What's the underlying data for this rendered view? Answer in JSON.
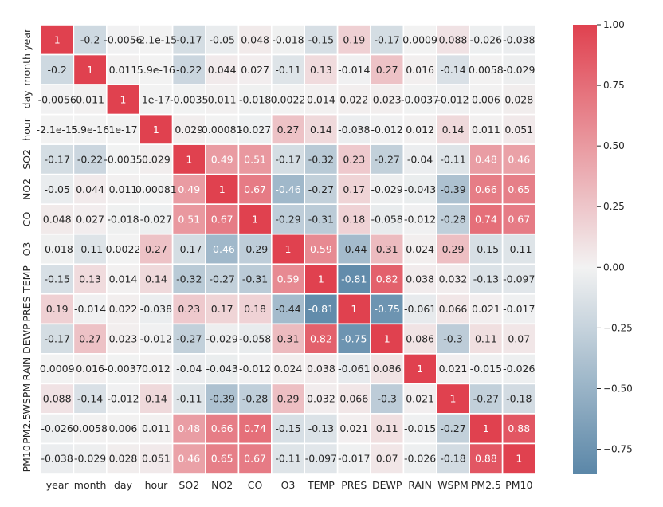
{
  "chart_data": {
    "type": "heatmap",
    "title": "",
    "xlabel": "",
    "ylabel": "",
    "variables": [
      "year",
      "month",
      "day",
      "hour",
      "SO2",
      "NO2",
      "CO",
      "O3",
      "TEMP",
      "PRES",
      "DEWP",
      "RAIN",
      "WSPM",
      "PM2.5",
      "PM10"
    ],
    "matrix": [
      [
        1,
        -0.2,
        -0.0056,
        -2.1e-15,
        -0.17,
        -0.05,
        0.048,
        -0.018,
        -0.15,
        0.19,
        -0.17,
        0.0009,
        0.088,
        -0.026,
        -0.038
      ],
      [
        -0.2,
        1,
        0.011,
        5.9e-16,
        -0.22,
        0.044,
        0.027,
        -0.11,
        0.13,
        -0.014,
        0.27,
        0.016,
        -0.14,
        0.0058,
        -0.029
      ],
      [
        -0.0056,
        0.011,
        1,
        1e-17,
        -0.0035,
        0.011,
        -0.018,
        0.0022,
        0.014,
        0.022,
        0.023,
        -0.0037,
        -0.012,
        0.006,
        0.028
      ],
      [
        -2.1e-15,
        5.9e-16,
        1e-17,
        1,
        0.029,
        0.00081,
        -0.027,
        0.27,
        0.14,
        -0.038,
        -0.012,
        0.012,
        0.14,
        0.011,
        0.051
      ],
      [
        -0.17,
        -0.22,
        -0.0035,
        0.029,
        1,
        0.49,
        0.51,
        -0.17,
        -0.32,
        0.23,
        -0.27,
        -0.04,
        -0.11,
        0.48,
        0.46
      ],
      [
        -0.05,
        0.044,
        0.011,
        0.00081,
        0.49,
        1,
        0.67,
        -0.46,
        -0.27,
        0.17,
        -0.029,
        -0.043,
        -0.39,
        0.66,
        0.65
      ],
      [
        0.048,
        0.027,
        -0.018,
        -0.027,
        0.51,
        0.67,
        1,
        -0.29,
        -0.31,
        0.18,
        -0.058,
        -0.012,
        -0.28,
        0.74,
        0.67
      ],
      [
        -0.018,
        -0.11,
        0.0022,
        0.27,
        -0.17,
        -0.46,
        -0.29,
        1,
        0.59,
        -0.44,
        0.31,
        0.024,
        0.29,
        -0.15,
        -0.11
      ],
      [
        -0.15,
        0.13,
        0.014,
        0.14,
        -0.32,
        -0.27,
        -0.31,
        0.59,
        1,
        -0.81,
        0.82,
        0.038,
        0.032,
        -0.13,
        -0.097
      ],
      [
        0.19,
        -0.014,
        0.022,
        -0.038,
        0.23,
        0.17,
        0.18,
        -0.44,
        -0.81,
        1,
        -0.75,
        -0.061,
        0.066,
        0.021,
        -0.017
      ],
      [
        -0.17,
        0.27,
        0.023,
        -0.012,
        -0.27,
        -0.029,
        -0.058,
        0.31,
        0.82,
        -0.75,
        1,
        0.086,
        -0.3,
        0.11,
        0.07
      ],
      [
        0.0009,
        0.016,
        -0.0037,
        0.012,
        -0.04,
        -0.043,
        -0.012,
        0.024,
        0.038,
        -0.061,
        0.086,
        1,
        0.021,
        -0.015,
        -0.026
      ],
      [
        0.088,
        -0.14,
        -0.012,
        0.14,
        -0.11,
        -0.39,
        -0.28,
        0.29,
        0.032,
        0.066,
        -0.3,
        0.021,
        1,
        -0.27,
        -0.18
      ],
      [
        -0.026,
        0.0058,
        0.006,
        0.011,
        0.48,
        0.66,
        0.74,
        -0.15,
        -0.13,
        0.021,
        0.11,
        -0.015,
        -0.27,
        1,
        0.88
      ],
      [
        -0.038,
        -0.029,
        0.028,
        0.051,
        0.46,
        0.65,
        0.67,
        -0.11,
        -0.097,
        -0.017,
        0.07,
        -0.026,
        -0.18,
        0.88,
        1
      ]
    ],
    "annotations": [
      [
        "1",
        "-0.2",
        "-0.0056",
        "-2.1e-15",
        "-0.17",
        "-0.05",
        "0.048",
        "-0.018",
        "-0.15",
        "0.19",
        "-0.17",
        "0.0009",
        "0.088",
        "-0.026",
        "-0.038"
      ],
      [
        "-0.2",
        "1",
        "0.011",
        "5.9e-16",
        "-0.22",
        "0.044",
        "0.027",
        "-0.11",
        "0.13",
        "-0.014",
        "0.27",
        "0.016",
        "-0.14",
        "0.0058",
        "-0.029"
      ],
      [
        "-0.0056",
        "0.011",
        "1",
        "1e-17",
        "-0.0035",
        "0.011",
        "-0.018",
        "0.0022",
        "0.014",
        "0.022",
        "0.023",
        "-0.0037",
        "-0.012",
        "0.006",
        "0.028"
      ],
      [
        "-2.1e-15",
        "5.9e-16",
        "1e-17",
        "1",
        "0.029",
        "0.00081",
        "-0.027",
        "0.27",
        "0.14",
        "-0.038",
        "-0.012",
        "0.012",
        "0.14",
        "0.011",
        "0.051"
      ],
      [
        "-0.17",
        "-0.22",
        "-0.0035",
        "0.029",
        "1",
        "0.49",
        "0.51",
        "-0.17",
        "-0.32",
        "0.23",
        "-0.27",
        "-0.04",
        "-0.11",
        "0.48",
        "0.46"
      ],
      [
        "-0.05",
        "0.044",
        "0.011",
        "0.00081",
        "0.49",
        "1",
        "0.67",
        "-0.46",
        "-0.27",
        "0.17",
        "-0.029",
        "-0.043",
        "-0.39",
        "0.66",
        "0.65"
      ],
      [
        "0.048",
        "0.027",
        "-0.018",
        "-0.027",
        "0.51",
        "0.67",
        "1",
        "-0.29",
        "-0.31",
        "0.18",
        "-0.058",
        "-0.012",
        "-0.28",
        "0.74",
        "0.67"
      ],
      [
        "-0.018",
        "-0.11",
        "0.0022",
        "0.27",
        "-0.17",
        "-0.46",
        "-0.29",
        "1",
        "0.59",
        "-0.44",
        "0.31",
        "0.024",
        "0.29",
        "-0.15",
        "-0.11"
      ],
      [
        "-0.15",
        "0.13",
        "0.014",
        "0.14",
        "-0.32",
        "-0.27",
        "-0.31",
        "0.59",
        "1",
        "-0.81",
        "0.82",
        "0.038",
        "0.032",
        "-0.13",
        "-0.097"
      ],
      [
        "0.19",
        "-0.014",
        "0.022",
        "-0.038",
        "0.23",
        "0.17",
        "0.18",
        "-0.44",
        "-0.81",
        "1",
        "-0.75",
        "-0.061",
        "0.066",
        "0.021",
        "-0.017"
      ],
      [
        "-0.17",
        "0.27",
        "0.023",
        "-0.012",
        "-0.27",
        "-0.029",
        "-0.058",
        "0.31",
        "0.82",
        "-0.75",
        "1",
        "0.086",
        "-0.3",
        "0.11",
        "0.07"
      ],
      [
        "0.0009",
        "0.016",
        "-0.0037",
        "0.012",
        "-0.04",
        "-0.043",
        "-0.012",
        "0.024",
        "0.038",
        "-0.061",
        "0.086",
        "1",
        "0.021",
        "-0.015",
        "-0.026"
      ],
      [
        "0.088",
        "-0.14",
        "-0.012",
        "0.14",
        "-0.11",
        "-0.39",
        "-0.28",
        "0.29",
        "0.032",
        "0.066",
        "-0.3",
        "0.021",
        "1",
        "-0.27",
        "-0.18"
      ],
      [
        "-0.026",
        "0.0058",
        "0.006",
        "0.011",
        "0.48",
        "0.66",
        "0.74",
        "-0.15",
        "-0.13",
        "0.021",
        "0.11",
        "-0.015",
        "-0.27",
        "1",
        "0.88"
      ],
      [
        "-0.038",
        "-0.029",
        "0.028",
        "0.051",
        "0.46",
        "0.65",
        "0.67",
        "-0.11",
        "-0.097",
        "-0.017",
        "0.07",
        "-0.026",
        "-0.18",
        "0.88",
        "1"
      ]
    ],
    "colorbar": {
      "range": [
        -0.85,
        1.0
      ],
      "ticks": [
        1.0,
        0.75,
        0.5,
        0.25,
        0.0,
        -0.25,
        -0.5,
        -0.75
      ],
      "tick_labels": [
        "1.00",
        "0.75",
        "0.50",
        "0.25",
        "0.00",
        "−0.25",
        "−0.50",
        "−0.75"
      ],
      "colors": {
        "negative": "#5b87a8",
        "center": "#f2f2f2",
        "positive": "#e0414f"
      }
    },
    "grid": true,
    "legend": "right (colorbar)"
  }
}
